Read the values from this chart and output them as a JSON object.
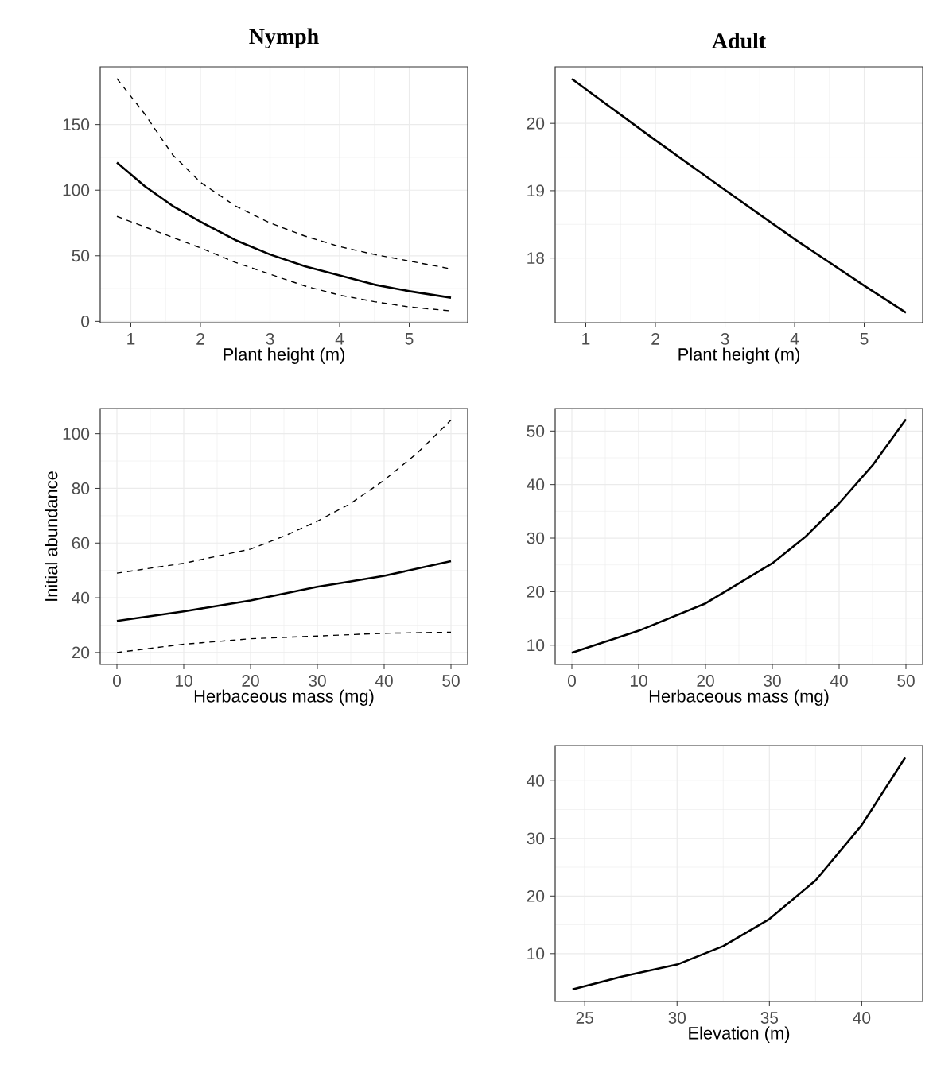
{
  "chart_data": [
    {
      "type": "line",
      "title": "Nymph",
      "xlabel": "Plant height (m)",
      "x": [
        0.8,
        1.2,
        1.6,
        2,
        2.5,
        3,
        3.5,
        4,
        4.5,
        5,
        5.6
      ],
      "series": [
        {
          "color": "#000000",
          "line_style": "dashed",
          "values": [
            185,
            158,
            127,
            106,
            88,
            75,
            65,
            57,
            51,
            46,
            40
          ]
        },
        {
          "color": "#000000",
          "line_style": "solid",
          "values": [
            121,
            103,
            88,
            76,
            62,
            51,
            42,
            35,
            28,
            23,
            18
          ]
        },
        {
          "color": "#000000",
          "line_style": "dashed",
          "values": [
            80,
            72,
            64,
            56,
            45,
            36,
            27,
            20,
            15,
            11,
            8
          ]
        }
      ],
      "xlim": [
        0.56,
        5.84
      ],
      "ylim": [
        -1,
        194
      ],
      "xticks": [
        1,
        2,
        3,
        4,
        5
      ],
      "yticks": [
        0,
        50,
        100,
        150
      ],
      "grid": true
    },
    {
      "type": "line",
      "title": "Adult",
      "xlabel": "Plant height (m)",
      "x": [
        0.8,
        2,
        3,
        4,
        5,
        5.6
      ],
      "series": [
        {
          "color": "#000000",
          "line_style": "solid",
          "values": [
            20.66,
            19.75,
            19.01,
            18.28,
            17.59,
            17.19
          ]
        }
      ],
      "xlim": [
        0.56,
        5.84
      ],
      "ylim": [
        17.04,
        20.84
      ],
      "xticks": [
        1,
        2,
        3,
        4,
        5
      ],
      "yticks": [
        18,
        19,
        20
      ],
      "grid": true
    },
    {
      "type": "line",
      "xlabel": "Herbaceous mass (mg)",
      "ylabel": "Initial abundance",
      "x": [
        0,
        10,
        20,
        25,
        30,
        35,
        40,
        45,
        50
      ],
      "series": [
        {
          "color": "#000000",
          "line_style": "dashed",
          "values": [
            49,
            52.6,
            57.8,
            62.5,
            68,
            74.5,
            83,
            93,
            105
          ]
        },
        {
          "color": "#000000",
          "line_style": "solid",
          "values": [
            31.5,
            35,
            39,
            41.5,
            44,
            46,
            48,
            50.7,
            53.4
          ]
        },
        {
          "color": "#000000",
          "line_style": "dashed",
          "values": [
            20,
            23,
            25,
            25.5,
            26,
            26.5,
            27,
            27.2,
            27.4
          ]
        }
      ],
      "xlim": [
        -2.5,
        52.5
      ],
      "ylim": [
        15.6,
        109.2
      ],
      "xticks": [
        0,
        10,
        20,
        30,
        40,
        50
      ],
      "yticks": [
        20,
        40,
        60,
        80,
        100
      ],
      "grid": true
    },
    {
      "type": "line",
      "xlabel": "Herbaceous mass (mg)",
      "x": [
        0,
        10,
        20,
        30,
        35,
        40,
        45,
        50
      ],
      "series": [
        {
          "color": "#000000",
          "line_style": "solid",
          "values": [
            8.6,
            12.7,
            17.8,
            25.3,
            30.3,
            36.5,
            43.6,
            52.2
          ]
        }
      ],
      "xlim": [
        -2.5,
        52.5
      ],
      "ylim": [
        6.4,
        54.2
      ],
      "xticks": [
        0,
        10,
        20,
        30,
        40,
        50
      ],
      "yticks": [
        10,
        20,
        30,
        40,
        50
      ],
      "grid": true
    },
    {
      "type": "line",
      "xlabel": "Elevation (m)",
      "x": [
        24.34,
        27,
        30,
        32.5,
        35,
        37.5,
        40,
        42.35
      ],
      "series": [
        {
          "color": "#000000",
          "line_style": "solid",
          "values": [
            3.8,
            6,
            8.1,
            11.3,
            16,
            22.7,
            32.3,
            44
          ]
        }
      ],
      "xlim": [
        23.4,
        43.3
      ],
      "ylim": [
        1.7,
        46.1
      ],
      "xticks": [
        25,
        30,
        35,
        40
      ],
      "yticks": [
        10,
        20,
        30,
        40
      ],
      "grid": true
    }
  ]
}
